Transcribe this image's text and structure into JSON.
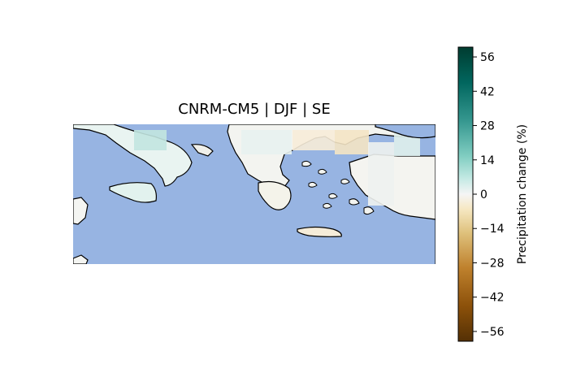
{
  "title": "CNRM-CM5 | DJF | SE",
  "colorbar": {
    "label": "Precipitation change (%)",
    "min": -60,
    "max": 60,
    "ticks": [
      56,
      42,
      28,
      14,
      0,
      -14,
      -28,
      -42,
      -56
    ],
    "tick_labels": [
      "56",
      "42",
      "28",
      "14",
      "0",
      "−14",
      "−28",
      "−42",
      "−56"
    ],
    "colormap": "BrBG"
  },
  "colors": {
    "ocean": "#97b4e2",
    "land": "#f5f5f5",
    "coastline": "#000000"
  }
}
